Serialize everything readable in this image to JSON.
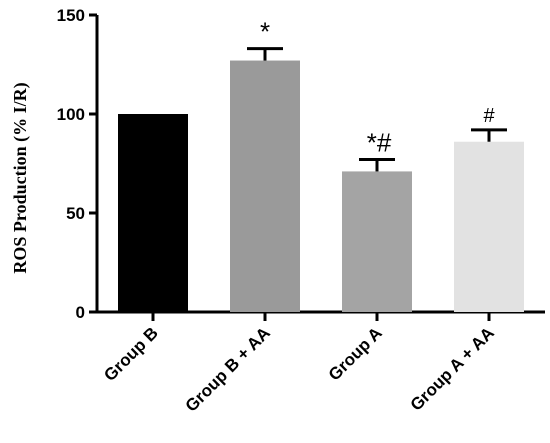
{
  "chart_data": {
    "type": "bar",
    "categories": [
      "Group B",
      "Group B + AA",
      "Group A",
      "Group A + AA"
    ],
    "values": [
      100,
      127,
      71,
      86
    ],
    "errors": [
      0,
      6,
      6,
      6
    ],
    "annotations": [
      "",
      "*",
      "*#",
      "#"
    ],
    "colors": [
      "#000000",
      "#9a9a9a",
      "#a4a4a4",
      "#e2e2e2"
    ],
    "title": "",
    "xlabel": "",
    "ylabel": "ROS Production (% I/R)",
    "ylim": [
      0,
      150
    ],
    "yticks": [
      0,
      50,
      100,
      150
    ],
    "grid": false,
    "legend": "none"
  }
}
